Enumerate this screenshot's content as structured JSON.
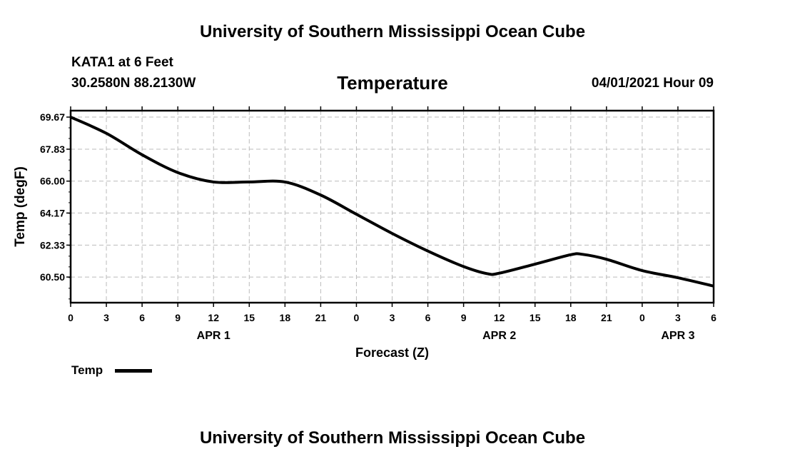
{
  "header": {
    "title_top": "University of Southern Mississippi Ocean Cube",
    "station": "KATA1 at 6 Feet",
    "coords": "30.2580N  88.2130W",
    "datetime": "04/01/2021 Hour 09",
    "title_bottom": "University of Southern Mississippi Ocean Cube"
  },
  "chart_data": {
    "type": "line",
    "title": "Temperature",
    "xlabel": "Forecast (Z)",
    "ylabel": "Temp (degF)",
    "xlim": [
      0,
      54
    ],
    "ylim": [
      59.03,
      70.04
    ],
    "grid": true,
    "x_tick_labels": [
      "0",
      "3",
      "6",
      "9",
      "12",
      "15",
      "18",
      "21",
      "0",
      "3",
      "6",
      "9",
      "12",
      "15",
      "18",
      "21",
      "0",
      "3",
      "6"
    ],
    "date_labels": [
      {
        "label": "APR 1",
        "hour": 12
      },
      {
        "label": "APR 2",
        "hour": 36
      },
      {
        "label": "APR 3",
        "hour": 51
      }
    ],
    "y_ticks": [
      69.67,
      67.83,
      66.0,
      64.17,
      62.33,
      60.5
    ],
    "y_tick_labels": [
      "69.67",
      "67.83",
      "66.00",
      "64.17",
      "62.33",
      "60.50"
    ],
    "legend": {
      "label": "Temp",
      "placement": "bottom-left"
    },
    "series": [
      {
        "name": "Temp",
        "color": "#000000",
        "x": [
          0,
          3,
          6,
          9,
          12,
          15,
          18,
          21,
          24,
          27,
          30,
          33,
          35,
          36,
          39,
          42,
          43,
          45,
          48,
          51,
          54
        ],
        "values": [
          69.67,
          68.74,
          67.51,
          66.49,
          65.95,
          65.95,
          65.95,
          65.2,
          64.1,
          63.0,
          61.99,
          61.1,
          60.69,
          60.72,
          61.24,
          61.78,
          61.8,
          61.52,
          60.87,
          60.46,
          59.98
        ]
      }
    ]
  }
}
